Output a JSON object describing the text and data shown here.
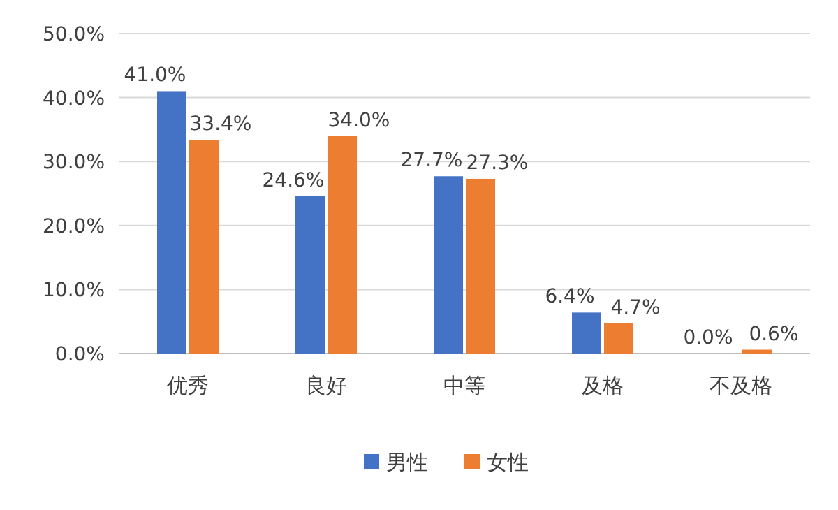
{
  "chart_data": {
    "type": "bar",
    "categories": [
      "优秀",
      "良好",
      "中等",
      "及格",
      "不及格"
    ],
    "series": [
      {
        "name": "男性",
        "color": "#4472c4",
        "values": [
          41.0,
          24.6,
          27.7,
          6.4,
          0.0
        ],
        "value_labels": [
          "41.0%",
          "24.6%",
          "27.7%",
          "6.4%",
          "0.0%"
        ]
      },
      {
        "name": "女性",
        "color": "#ed7d31",
        "values": [
          33.4,
          34.0,
          27.3,
          4.7,
          0.6
        ],
        "value_labels": [
          "33.4%",
          "34.0%",
          "27.3%",
          "4.7%",
          "0.6%"
        ]
      }
    ],
    "ylim": [
      0,
      50
    ],
    "yticks": [
      {
        "value": 0,
        "label": "0.0%"
      },
      {
        "value": 10,
        "label": "10.0%"
      },
      {
        "value": 20,
        "label": "20.0%"
      },
      {
        "value": 30,
        "label": "30.0%"
      },
      {
        "value": 40,
        "label": "40.0%"
      },
      {
        "value": 50,
        "label": "50.0%"
      }
    ],
    "grid": "y",
    "legend": "bottom"
  }
}
